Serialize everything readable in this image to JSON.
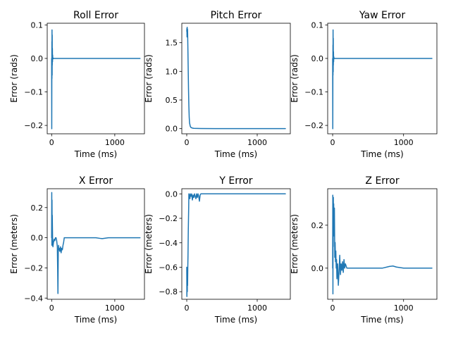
{
  "figure": {
    "background": "#ffffff",
    "line_color": "#1f77b4"
  },
  "chart_data": [
    {
      "type": "line",
      "title": "Roll Error",
      "xlabel": "Time (ms)",
      "ylabel": "Error (rads)",
      "xlim": [
        -70,
        1470
      ],
      "ylim": [
        -0.225,
        0.105
      ],
      "xticks": [
        {
          "value": 0,
          "label": "0"
        },
        {
          "value": 1000,
          "label": "1000"
        }
      ],
      "yticks": [
        {
          "value": -0.2,
          "label": "−0.2"
        },
        {
          "value": -0.1,
          "label": "−0.1"
        },
        {
          "value": 0.0,
          "label": "0.0"
        },
        {
          "value": 0.1,
          "label": "0.1"
        }
      ],
      "grid": false,
      "series": [
        {
          "color": "#1f77b4",
          "x": [
            0,
            2,
            4,
            5,
            6,
            8,
            9,
            10,
            12,
            14,
            16,
            18,
            20,
            25,
            30,
            40,
            60,
            100,
            200,
            400,
            800,
            1200,
            1400
          ],
          "y": [
            0.0,
            -0.21,
            0.05,
            -0.06,
            0.085,
            -0.05,
            0.07,
            -0.02,
            0.03,
            -0.01,
            0.01,
            0.0,
            0.002,
            -0.001,
            0.0,
            0.0,
            0.0,
            0.0,
            0.0,
            0.0,
            0.0,
            0.0,
            0.0
          ]
        }
      ]
    },
    {
      "type": "line",
      "title": "Pitch Error",
      "xlabel": "Time (ms)",
      "ylabel": "Error (rads)",
      "xlim": [
        -70,
        1470
      ],
      "ylim": [
        -0.09,
        1.84
      ],
      "xticks": [
        {
          "value": 0,
          "label": "0"
        },
        {
          "value": 1000,
          "label": "1000"
        }
      ],
      "yticks": [
        {
          "value": 0.0,
          "label": "0.0"
        },
        {
          "value": 0.5,
          "label": "0.5"
        },
        {
          "value": 1.0,
          "label": "1.0"
        },
        {
          "value": 1.5,
          "label": "1.5"
        }
      ],
      "grid": false,
      "series": [
        {
          "color": "#1f77b4",
          "x": [
            0,
            2,
            4,
            6,
            8,
            10,
            12,
            15,
            20,
            25,
            30,
            35,
            40,
            50,
            60,
            80,
            100,
            150,
            200,
            400,
            800,
            1200,
            1400
          ],
          "y": [
            1.7,
            1.75,
            1.6,
            1.77,
            1.68,
            1.74,
            1.72,
            1.5,
            1.1,
            0.7,
            0.4,
            0.2,
            0.1,
            0.04,
            0.02,
            0.01,
            0.005,
            0.003,
            0.002,
            0.001,
            0.0,
            0.0,
            0.0
          ]
        }
      ]
    },
    {
      "type": "line",
      "title": "Yaw Error",
      "xlabel": "Time (ms)",
      "ylabel": "Error (rads)",
      "xlim": [
        -70,
        1470
      ],
      "ylim": [
        -0.225,
        0.105
      ],
      "xticks": [
        {
          "value": 0,
          "label": "0"
        },
        {
          "value": 1000,
          "label": "1000"
        }
      ],
      "yticks": [
        {
          "value": -0.2,
          "label": "−0.2"
        },
        {
          "value": -0.1,
          "label": "−0.1"
        },
        {
          "value": 0.0,
          "label": "0.0"
        },
        {
          "value": 0.1,
          "label": "0.1"
        }
      ],
      "grid": false,
      "series": [
        {
          "color": "#1f77b4",
          "x": [
            0,
            2,
            4,
            5,
            6,
            8,
            9,
            10,
            12,
            14,
            16,
            18,
            20,
            25,
            30,
            40,
            60,
            100,
            200,
            400,
            800,
            1200,
            1400
          ],
          "y": [
            0.0,
            -0.21,
            0.04,
            -0.05,
            0.085,
            -0.04,
            0.06,
            -0.02,
            0.02,
            -0.01,
            0.005,
            0.0,
            0.001,
            0.0,
            0.0,
            0.0,
            0.0,
            0.0,
            0.0,
            0.0,
            0.0,
            0.0,
            0.0
          ]
        }
      ]
    },
    {
      "type": "line",
      "title": "X Error",
      "xlabel": "Time (ms)",
      "ylabel": "Error (meters)",
      "xlim": [
        -70,
        1470
      ],
      "ylim": [
        -0.408,
        0.325
      ],
      "xticks": [
        {
          "value": 0,
          "label": "0"
        },
        {
          "value": 1000,
          "label": "1000"
        }
      ],
      "yticks": [
        {
          "value": -0.4,
          "label": "−0.4"
        },
        {
          "value": -0.2,
          "label": "−0.2"
        },
        {
          "value": 0.0,
          "label": "0.0"
        },
        {
          "value": 0.2,
          "label": "0.2"
        }
      ],
      "grid": false,
      "series": [
        {
          "color": "#1f77b4",
          "x": [
            0,
            2,
            4,
            6,
            8,
            10,
            15,
            20,
            30,
            40,
            50,
            60,
            70,
            80,
            90,
            95,
            100,
            105,
            110,
            115,
            120,
            130,
            140,
            150,
            160,
            170,
            180,
            190,
            200,
            220,
            250,
            300,
            400,
            600,
            700,
            780,
            800,
            900,
            1000,
            1200,
            1400
          ],
          "y": [
            0.0,
            0.3,
            -0.05,
            0.25,
            0.05,
            0.15,
            0.0,
            -0.06,
            -0.03,
            -0.01,
            -0.02,
            0.0,
            0.0,
            -0.02,
            -0.06,
            -0.2,
            -0.37,
            -0.1,
            -0.05,
            -0.08,
            -0.07,
            -0.09,
            -0.06,
            -0.1,
            -0.07,
            -0.08,
            -0.05,
            -0.03,
            0.0,
            0.0,
            0.0,
            0.0,
            0.0,
            0.0,
            0.0,
            -0.005,
            -0.006,
            0.0,
            0.0,
            0.0,
            0.0
          ]
        }
      ]
    },
    {
      "type": "line",
      "title": "Y Error",
      "xlabel": "Time (ms)",
      "ylabel": "Error (meters)",
      "xlim": [
        -70,
        1470
      ],
      "ylim": [
        -0.862,
        0.042
      ],
      "xticks": [
        {
          "value": 0,
          "label": "0"
        },
        {
          "value": 1000,
          "label": "1000"
        }
      ],
      "yticks": [
        {
          "value": -0.8,
          "label": "−0.8"
        },
        {
          "value": -0.6,
          "label": "−0.6"
        },
        {
          "value": -0.4,
          "label": "−0.4"
        },
        {
          "value": -0.2,
          "label": "−0.2"
        },
        {
          "value": 0.0,
          "label": "0.0"
        }
      ],
      "grid": false,
      "series": [
        {
          "color": "#1f77b4",
          "x": [
            0,
            2,
            5,
            8,
            10,
            12,
            15,
            18,
            20,
            22,
            25,
            28,
            30,
            35,
            40,
            45,
            50,
            60,
            70,
            80,
            90,
            100,
            110,
            120,
            130,
            140,
            150,
            160,
            170,
            180,
            190,
            200,
            220,
            250,
            300,
            400,
            800,
            1200,
            1400
          ],
          "y": [
            -0.6,
            -0.84,
            -0.7,
            -0.8,
            -0.65,
            -0.75,
            -0.6,
            -0.5,
            -0.4,
            -0.3,
            -0.2,
            -0.1,
            0.0,
            -0.03,
            -0.01,
            -0.04,
            0.0,
            -0.02,
            0.0,
            -0.05,
            -0.01,
            -0.03,
            0.0,
            -0.02,
            -0.04,
            0.0,
            -0.03,
            0.0,
            -0.02,
            -0.06,
            -0.01,
            0.0,
            0.0,
            0.0,
            0.0,
            0.0,
            0.0,
            0.0,
            0.0
          ]
        }
      ]
    },
    {
      "type": "line",
      "title": "Z Error",
      "xlabel": "Time (ms)",
      "ylabel": "Error (meters)",
      "xlim": [
        -70,
        1470
      ],
      "ylim": [
        -0.145,
        0.37
      ],
      "xticks": [
        {
          "value": 0,
          "label": "0"
        },
        {
          "value": 1000,
          "label": "1000"
        }
      ],
      "yticks": [
        {
          "value": 0.0,
          "label": "0.0"
        },
        {
          "value": 0.2,
          "label": "0.2"
        }
      ],
      "grid": false,
      "series": [
        {
          "color": "#1f77b4",
          "x": [
            0,
            2,
            4,
            6,
            8,
            10,
            12,
            15,
            20,
            25,
            30,
            35,
            40,
            45,
            50,
            55,
            60,
            70,
            80,
            90,
            100,
            110,
            120,
            130,
            140,
            150,
            160,
            170,
            180,
            200,
            250,
            300,
            500,
            700,
            800,
            850,
            900,
            1000,
            1200,
            1400
          ],
          "y": [
            0.0,
            0.34,
            -0.12,
            0.25,
            0.1,
            0.33,
            0.2,
            0.3,
            0.15,
            0.28,
            0.05,
            0.12,
            0.03,
            0.08,
            0.0,
            0.04,
            -0.05,
            0.02,
            -0.08,
            -0.02,
            0.06,
            -0.03,
            0.02,
            -0.01,
            0.03,
            -0.02,
            0.04,
            0.0,
            0.02,
            0.0,
            0.0,
            0.0,
            0.0,
            0.0,
            0.008,
            0.01,
            0.005,
            0.0,
            0.0,
            0.0
          ]
        }
      ]
    }
  ]
}
